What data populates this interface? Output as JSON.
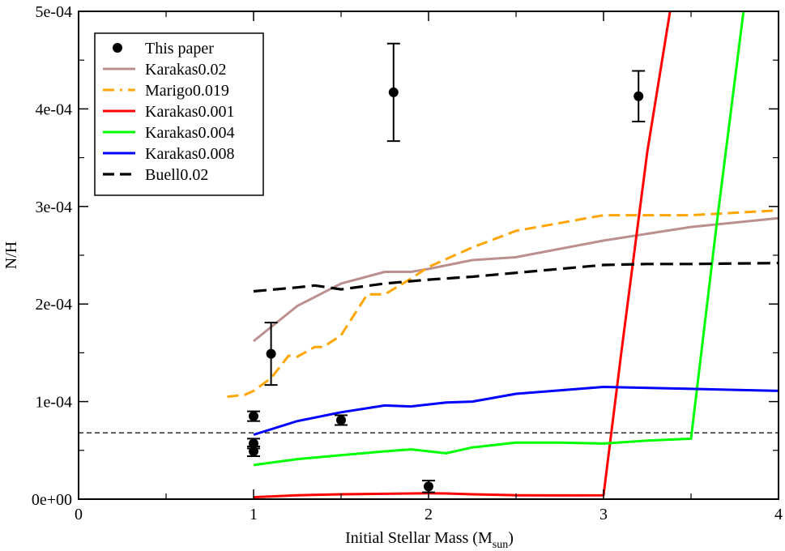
{
  "chart_data": {
    "type": "line",
    "title": "",
    "xlabel": "Initial Stellar Mass (M",
    "xlabel_sub": "sun",
    "xlabel_close": ")",
    "ylabel": "N/H",
    "xlim": [
      0,
      4
    ],
    "ylim": [
      0,
      0.0005
    ],
    "x_ticks": [
      0,
      1,
      2,
      3,
      4
    ],
    "x_tick_labels": [
      "0",
      "1",
      "2",
      "3",
      "4"
    ],
    "y_ticks": [
      0,
      0.0001,
      0.0002,
      0.0003,
      0.0004,
      0.0005
    ],
    "y_tick_labels": [
      "0e+00",
      "1e-04",
      "2e-04",
      "3e-04",
      "4e-04",
      "5e-04"
    ],
    "legend_position": "top-left",
    "reference_line": {
      "y": 6.8e-05,
      "color": "#000000",
      "style": "dashed"
    },
    "points": {
      "name": "This paper",
      "color": "#000000",
      "data": [
        {
          "x": 1.0,
          "y": 8.5e-05,
          "err": 5e-06
        },
        {
          "x": 1.0,
          "y": 5.7e-05,
          "err": 5e-06
        },
        {
          "x": 1.0,
          "y": 4.9e-05,
          "err": 5e-06
        },
        {
          "x": 1.1,
          "y": 0.000149,
          "err": 3.2e-05
        },
        {
          "x": 1.5,
          "y": 8.1e-05,
          "err": 5e-06
        },
        {
          "x": 1.8,
          "y": 0.000417,
          "err": 5e-05
        },
        {
          "x": 2.0,
          "y": 1.3e-05,
          "err": 6e-06
        },
        {
          "x": 3.2,
          "y": 0.000413,
          "err": 2.6e-05
        }
      ]
    },
    "series": [
      {
        "name": "Karakas0.02",
        "color": "#bc8f8f",
        "style": "solid",
        "x": [
          1.0,
          1.25,
          1.5,
          1.75,
          1.9,
          2.0,
          2.25,
          2.5,
          3.0,
          3.5,
          4.0
        ],
        "y": [
          0.000162,
          0.000198,
          0.000221,
          0.000233,
          0.000233,
          0.000236,
          0.000245,
          0.000248,
          0.000265,
          0.000279,
          0.000288
        ]
      },
      {
        "name": "Marigo0.019",
        "color": "#ffa500",
        "style": "dashed",
        "x": [
          0.85,
          0.95,
          1.0,
          1.1,
          1.2,
          1.25,
          1.35,
          1.4,
          1.5,
          1.65,
          1.75,
          1.9,
          2.0,
          2.25,
          2.5,
          3.0,
          3.5,
          4.0
        ],
        "y": [
          0.000105,
          0.000107,
          0.000111,
          0.000124,
          0.000147,
          0.000146,
          0.000156,
          0.000156,
          0.000168,
          0.00021,
          0.00021,
          0.000226,
          0.000238,
          0.000258,
          0.000275,
          0.000291,
          0.000291,
          0.000296
        ]
      },
      {
        "name": "Karakas0.001",
        "color": "#ff0000",
        "style": "solid",
        "x": [
          1.0,
          1.25,
          1.5,
          1.75,
          2.0,
          2.1,
          2.25,
          2.5,
          2.75,
          3.0,
          3.1,
          3.25,
          3.38
        ],
        "y": [
          2e-06,
          4e-06,
          5e-06,
          5.5e-06,
          6e-06,
          5.8e-06,
          5e-06,
          4e-06,
          3.8e-06,
          4e-06,
          0.000148,
          0.000356,
          0.0005
        ]
      },
      {
        "name": "Karakas0.004",
        "color": "#00ff00",
        "style": "solid",
        "x": [
          1.0,
          1.25,
          1.5,
          1.75,
          1.9,
          2.1,
          2.25,
          2.5,
          2.75,
          3.0,
          3.25,
          3.5,
          3.65,
          3.8
        ],
        "y": [
          3.5e-05,
          4.1e-05,
          4.5e-05,
          4.9e-05,
          5.1e-05,
          4.7e-05,
          5.3e-05,
          5.8e-05,
          5.8e-05,
          5.7e-05,
          6e-05,
          6.2e-05,
          0.000287,
          0.0005
        ]
      },
      {
        "name": "Karakas0.008",
        "color": "#0000ff",
        "style": "solid",
        "x": [
          1.0,
          1.25,
          1.5,
          1.75,
          1.9,
          2.1,
          2.25,
          2.5,
          3.0,
          3.5,
          4.0
        ],
        "y": [
          6.6e-05,
          8e-05,
          8.9e-05,
          9.6e-05,
          9.5e-05,
          9.9e-05,
          0.0001,
          0.000108,
          0.000115,
          0.000113,
          0.000111
        ]
      },
      {
        "name": "Buell0.02",
        "color": "#000000",
        "style": "dashed-thick",
        "x": [
          1.0,
          1.25,
          1.35,
          1.5,
          1.75,
          2.0,
          2.25,
          2.5,
          3.0,
          3.25,
          3.5,
          4.0
        ],
        "y": [
          0.000213,
          0.000217,
          0.000219,
          0.000215,
          0.000221,
          0.000225,
          0.000228,
          0.000232,
          0.00024,
          0.000241,
          0.000241,
          0.000242
        ]
      }
    ]
  }
}
